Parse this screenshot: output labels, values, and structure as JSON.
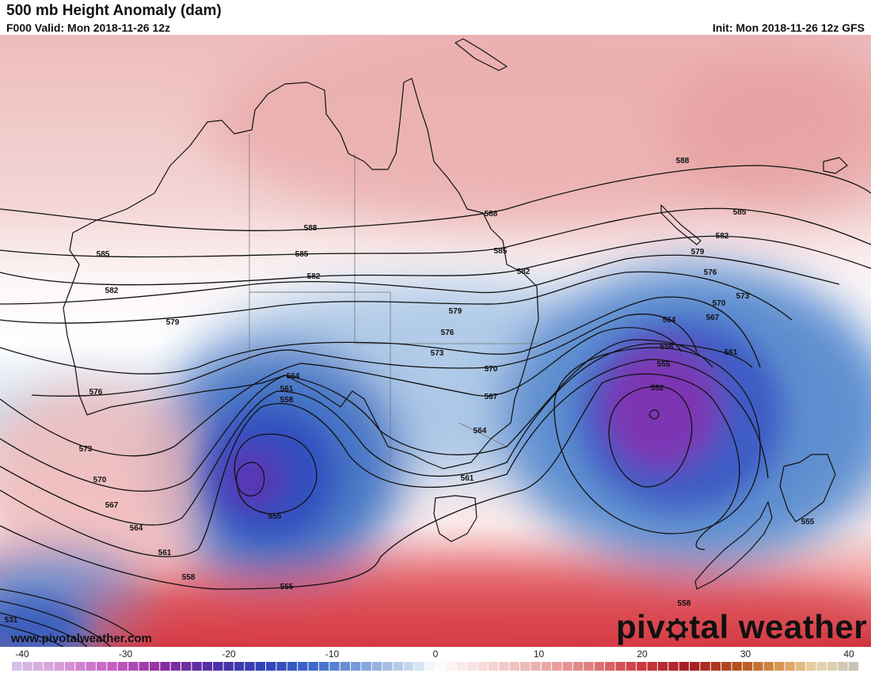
{
  "header": {
    "title": "500 mb Height Anomaly (dam)",
    "valid": "F000 Valid: Mon 2018-11-26 12z",
    "init": "Init: Mon 2018-11-26 12z GFS"
  },
  "footer": {
    "website": "www.pivotalweather.com",
    "brand_left": "piv",
    "brand_right": "tal weather"
  },
  "colorbar": {
    "ticks": [
      "-40",
      "-30",
      "-20",
      "-10",
      "0",
      "10",
      "20",
      "30",
      "40"
    ],
    "min": -40,
    "max": 40
  },
  "contour_labels": [
    "588",
    "585",
    "582",
    "579",
    "576",
    "573",
    "570",
    "567",
    "564",
    "561",
    "558",
    "555",
    "552",
    "531"
  ],
  "colors": {
    "positive": "#e9a7a7",
    "negative": "#5b86c8",
    "strong_positive": "#c62b35",
    "strong_negative": "#7b2fb0"
  }
}
